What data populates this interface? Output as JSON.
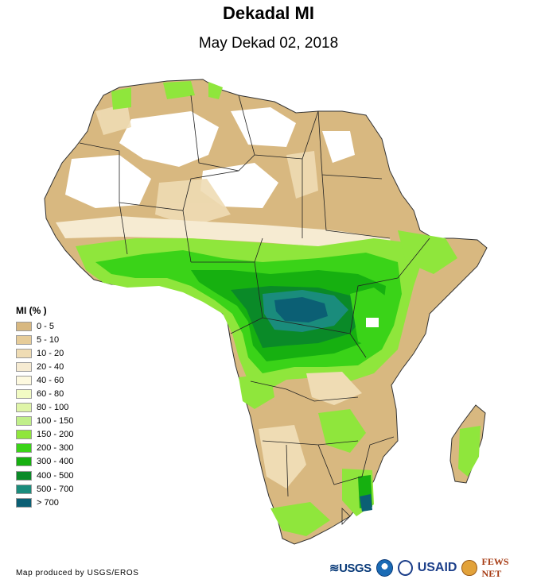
{
  "title": "Dekadal MI",
  "subtitle": "May Dekad 02, 2018",
  "legend": {
    "title": "MI (% )",
    "items": [
      {
        "label": "0 - 5",
        "color": "#d8b880"
      },
      {
        "label": "5 - 10",
        "color": "#e6cc99"
      },
      {
        "label": "10 - 20",
        "color": "#efdcb4"
      },
      {
        "label": "20 - 40",
        "color": "#f6ebd2"
      },
      {
        "label": "40 - 60",
        "color": "#fdf9df"
      },
      {
        "label": "60 - 80",
        "color": "#f2fbc4"
      },
      {
        "label": "80 - 100",
        "color": "#dff5a8"
      },
      {
        "label": "100 - 150",
        "color": "#c1ef8a"
      },
      {
        "label": "150 - 200",
        "color": "#8fe63c"
      },
      {
        "label": "200 - 300",
        "color": "#3ad318"
      },
      {
        "label": "300 - 400",
        "color": "#16b010"
      },
      {
        "label": "400 - 500",
        "color": "#0a8a28"
      },
      {
        "label": "500 - 700",
        "color": "#1a8c7c"
      },
      {
        "label": "> 700",
        "color": "#0b5f74"
      }
    ]
  },
  "credit": "Map produced by USGS/EROS",
  "logos": {
    "usgs": "≋USGS",
    "usaid": "USAID",
    "fews": "FEWS NET"
  }
}
